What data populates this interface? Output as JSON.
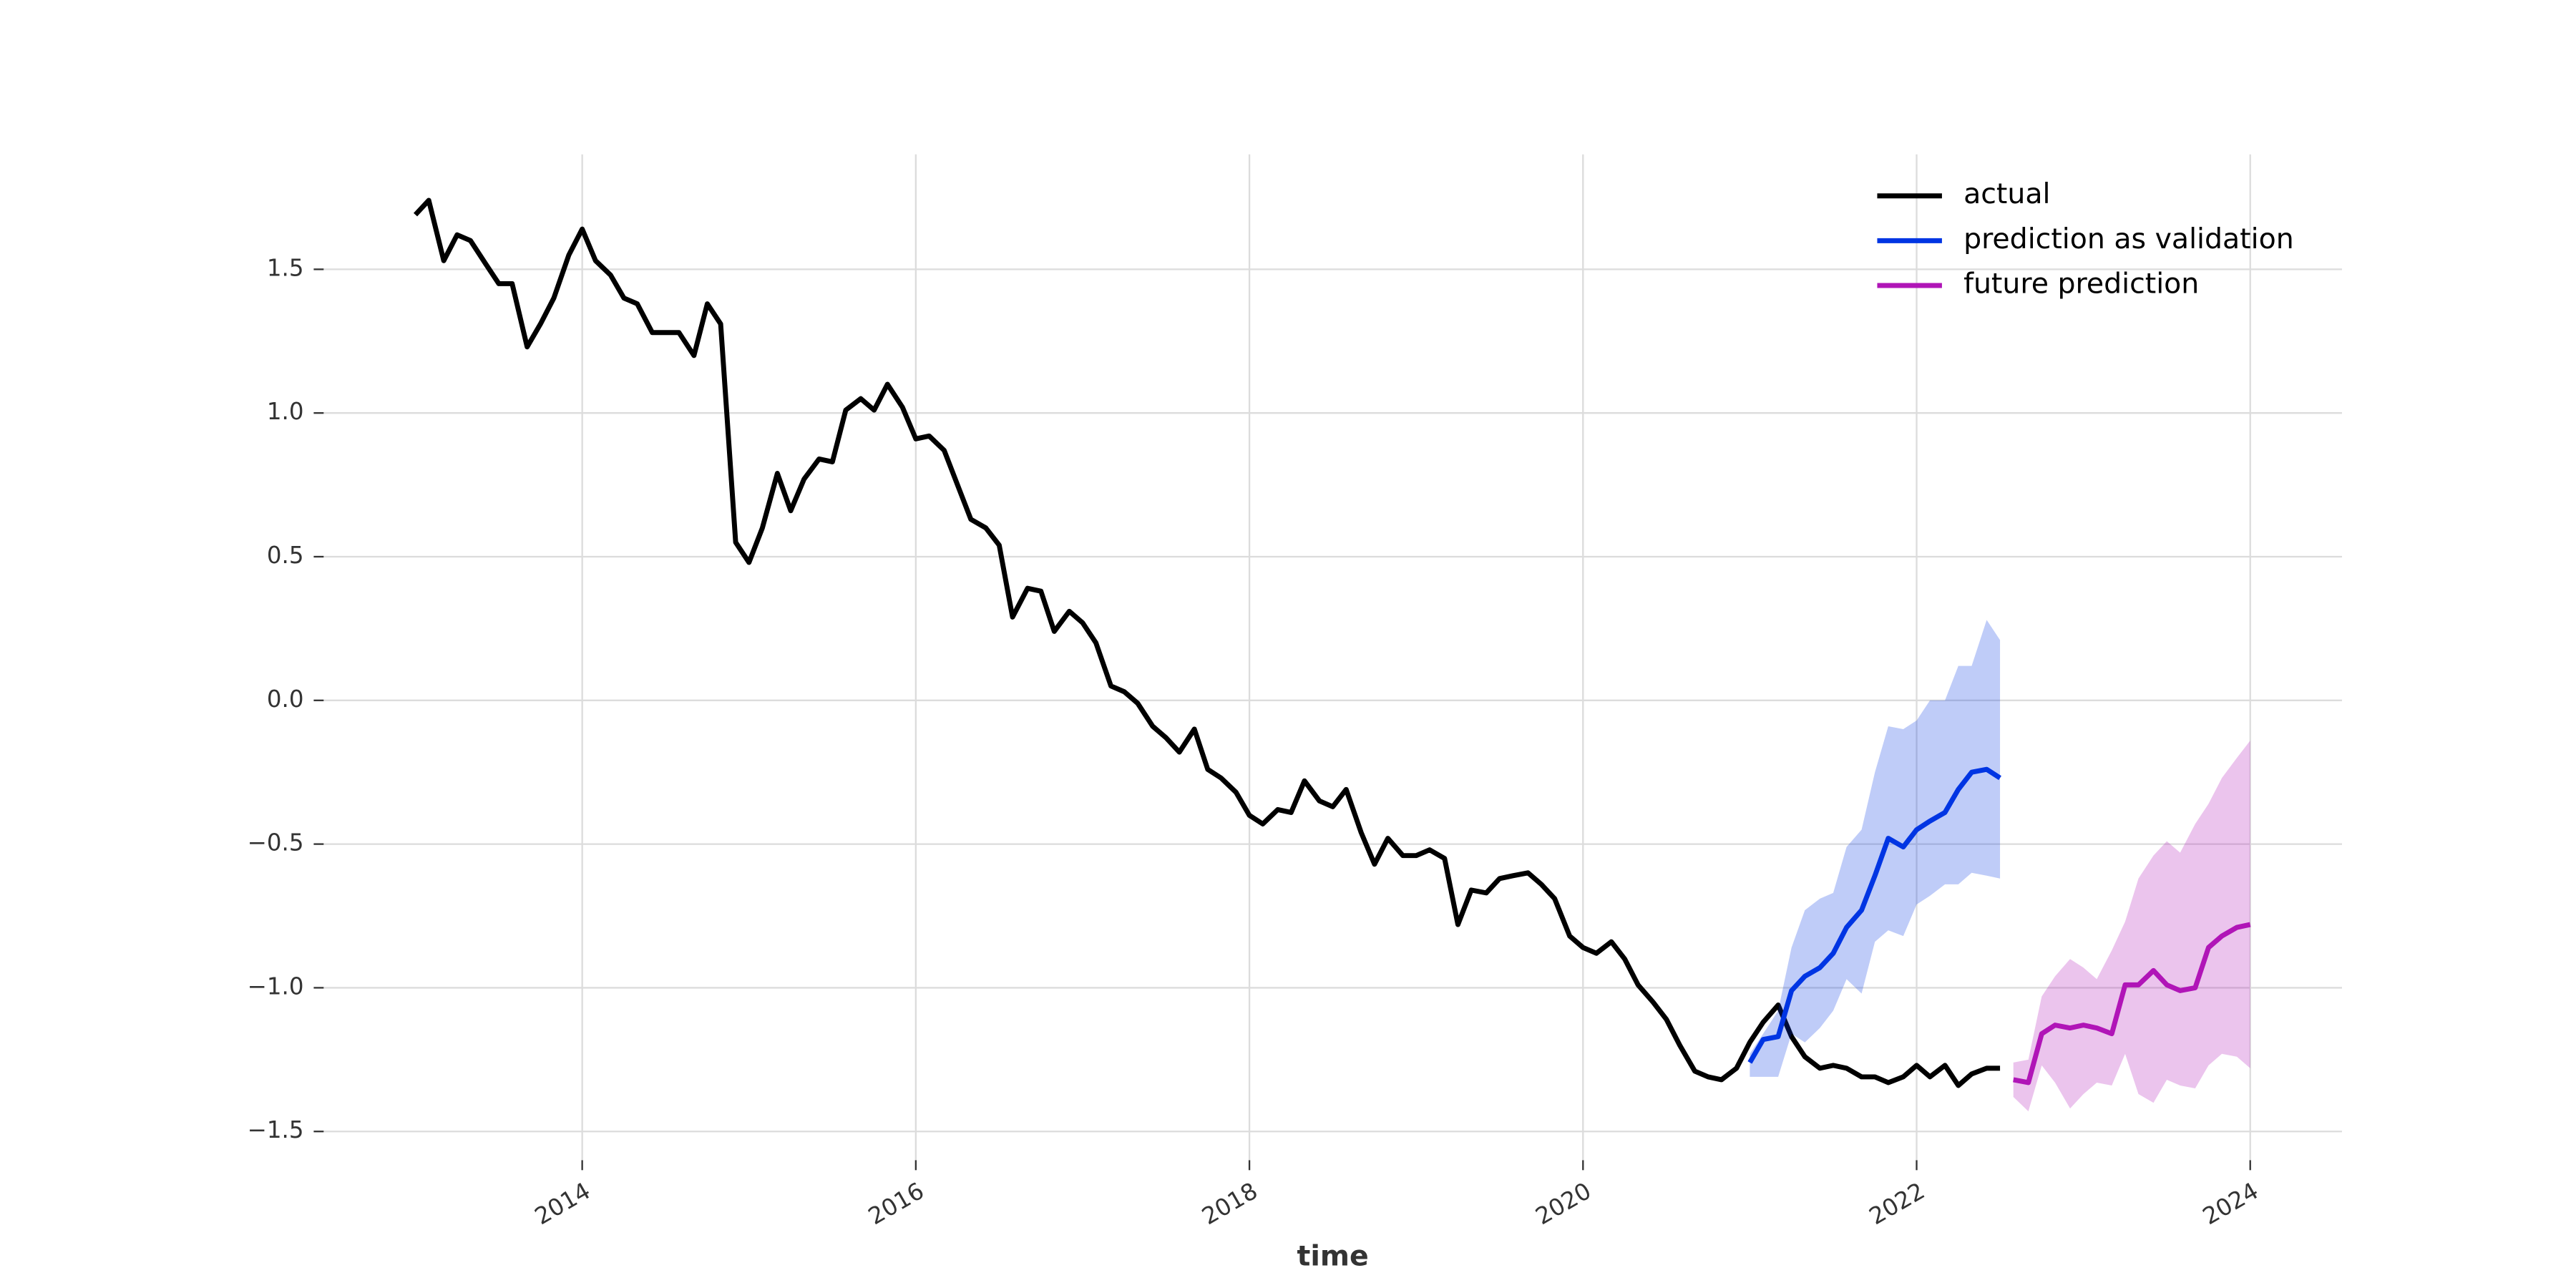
{
  "chart_data": {
    "type": "line",
    "xlabel": "time",
    "xlim": [
      2012.45,
      2024.55
    ],
    "xticks": [
      2014,
      2016,
      2018,
      2020,
      2022,
      2024
    ],
    "ylim": [
      -1.6,
      1.9
    ],
    "yticks": [
      {
        "value": -1.5,
        "label": "−1.5"
      },
      {
        "value": -1.0,
        "label": "−1.0"
      },
      {
        "value": -0.5,
        "label": "−0.5"
      },
      {
        "value": 0,
        "label": "0.0"
      },
      0.5,
      {
        "value": 1.0,
        "label": "1.0"
      },
      1.5
    ],
    "grid": true,
    "legend": "upper right",
    "series": [
      {
        "name": "actual",
        "color": "#000000",
        "x": [
          2013,
          2013.08,
          2013.17,
          2013.25,
          2013.33,
          2013.42,
          2013.5,
          2013.58,
          2013.67,
          2013.75,
          2013.83,
          2013.92,
          2014,
          2014.08,
          2014.17,
          2014.25,
          2014.33,
          2014.42,
          2014.5,
          2014.58,
          2014.67,
          2014.75,
          2014.83,
          2014.92,
          2015,
          2015.08,
          2015.17,
          2015.25,
          2015.33,
          2015.42,
          2015.5,
          2015.58,
          2015.67,
          2015.75,
          2015.83,
          2015.92,
          2016,
          2016.08,
          2016.17,
          2016.25,
          2016.33,
          2016.42,
          2016.5,
          2016.58,
          2016.67,
          2016.75,
          2016.83,
          2016.92,
          2017,
          2017.08,
          2017.17,
          2017.25,
          2017.33,
          2017.42,
          2017.5,
          2017.58,
          2017.67,
          2017.75,
          2017.83,
          2017.92,
          2018,
          2018.08,
          2018.17,
          2018.25,
          2018.33,
          2018.42,
          2018.5,
          2018.58,
          2018.67,
          2018.75,
          2018.83,
          2018.92,
          2019,
          2019.08,
          2019.17,
          2019.25,
          2019.33,
          2019.42,
          2019.5,
          2019.58,
          2019.67,
          2019.75,
          2019.83,
          2019.92,
          2020,
          2020.08,
          2020.17,
          2020.25,
          2020.33,
          2020.42,
          2020.5,
          2020.58,
          2020.67,
          2020.75,
          2020.83,
          2020.92,
          2021,
          2021.08,
          2021.17,
          2021.25,
          2021.33,
          2021.42,
          2021.5,
          2021.58,
          2021.67,
          2021.75,
          2021.83,
          2021.92,
          2022,
          2022.08,
          2022.17,
          2022.25,
          2022.33,
          2022.42,
          2022.5
        ],
        "values": [
          1.69,
          1.74,
          1.53,
          1.62,
          1.6,
          1.52,
          1.45,
          1.45,
          1.23,
          1.31,
          1.4,
          1.55,
          1.64,
          1.53,
          1.48,
          1.4,
          1.38,
          1.28,
          1.28,
          1.28,
          1.2,
          1.38,
          1.31,
          0.55,
          0.48,
          0.6,
          0.79,
          0.66,
          0.77,
          0.84,
          0.83,
          1.01,
          1.05,
          1.01,
          1.1,
          1.02,
          0.91,
          0.92,
          0.87,
          0.75,
          0.63,
          0.6,
          0.54,
          0.29,
          0.39,
          0.38,
          0.24,
          0.31,
          0.27,
          0.2,
          0.05,
          0.03,
          -0.01,
          -0.09,
          -0.13,
          -0.18,
          -0.1,
          -0.24,
          -0.27,
          -0.32,
          -0.4,
          -0.43,
          -0.38,
          -0.39,
          -0.28,
          -0.35,
          -0.37,
          -0.31,
          -0.46,
          -0.57,
          -0.48,
          -0.54,
          -0.54,
          -0.52,
          -0.55,
          -0.78,
          -0.66,
          -0.67,
          -0.62,
          -0.61,
          -0.6,
          -0.64,
          -0.69,
          -0.82,
          -0.86,
          -0.88,
          -0.84,
          -0.9,
          -0.99,
          -1.05,
          -1.11,
          -1.2,
          -1.29,
          -1.31,
          -1.32,
          -1.28,
          -1.19,
          -1.12,
          -1.06,
          -1.17,
          -1.24,
          -1.28,
          -1.27,
          -1.28,
          -1.31,
          -1.31,
          -1.33,
          -1.31,
          -1.27,
          -1.31,
          -1.27,
          -1.34,
          -1.3,
          -1.28,
          -1.28
        ]
      },
      {
        "name": "prediction as validation",
        "color": "#0035e3",
        "x": [
          2021,
          2021.08,
          2021.17,
          2021.25,
          2021.33,
          2021.42,
          2021.5,
          2021.58,
          2021.67,
          2021.75,
          2021.83,
          2021.92,
          2022,
          2022.08,
          2022.17,
          2022.25,
          2022.33,
          2022.42,
          2022.5
        ],
        "values": [
          -1.26,
          -1.18,
          -1.17,
          -1.01,
          -0.96,
          -0.93,
          -0.88,
          -0.79,
          -0.73,
          -0.61,
          -0.48,
          -0.51,
          -0.45,
          -0.42,
          -0.39,
          -0.31,
          -0.25,
          -0.24,
          -0.27
        ],
        "upper": [
          -1.23,
          -1.16,
          -1.08,
          -0.86,
          -0.73,
          -0.69,
          -0.67,
          -0.51,
          -0.45,
          -0.25,
          -0.09,
          -0.1,
          -0.07,
          0.0,
          0.0,
          0.12,
          0.12,
          0.28,
          0.21
        ],
        "lower": [
          -1.31,
          -1.31,
          -1.31,
          -1.16,
          -1.19,
          -1.14,
          -1.08,
          -0.97,
          -1.02,
          -0.84,
          -0.8,
          -0.82,
          -0.71,
          -0.68,
          -0.64,
          -0.64,
          -0.6,
          -0.61,
          -0.62
        ]
      },
      {
        "name": "future prediction",
        "color": "#b015b7",
        "x": [
          2022.58,
          2022.67,
          2022.75,
          2022.83,
          2022.92,
          2023,
          2023.08,
          2023.17,
          2023.25,
          2023.33,
          2023.42,
          2023.5,
          2023.58,
          2023.67,
          2023.75,
          2023.83,
          2023.92,
          2024
        ],
        "values": [
          -1.32,
          -1.33,
          -1.16,
          -1.13,
          -1.14,
          -1.13,
          -1.14,
          -1.16,
          -0.99,
          -0.99,
          -0.94,
          -0.99,
          -1.01,
          -1.0,
          -0.86,
          -0.82,
          -0.79,
          -0.78
        ],
        "upper": [
          -1.26,
          -1.25,
          -1.03,
          -0.96,
          -0.9,
          -0.93,
          -0.97,
          -0.87,
          -0.77,
          -0.62,
          -0.54,
          -0.49,
          -0.53,
          -0.43,
          -0.36,
          -0.27,
          -0.2,
          -0.14
        ],
        "lower": [
          -1.38,
          -1.43,
          -1.27,
          -1.33,
          -1.42,
          -1.37,
          -1.33,
          -1.34,
          -1.23,
          -1.37,
          -1.4,
          -1.32,
          -1.34,
          -1.35,
          -1.27,
          -1.23,
          -1.24,
          -1.28
        ]
      }
    ]
  }
}
